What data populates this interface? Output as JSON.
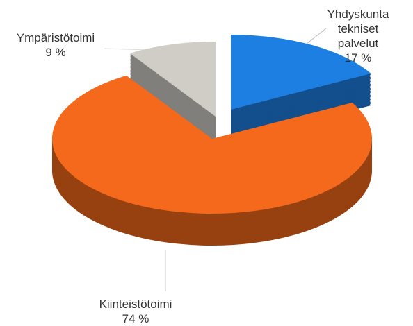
{
  "chart_data": {
    "type": "pie",
    "categories": [
      "Yhdyskunta tekniset palvelut",
      "Kiinteistötoimi",
      "Ympäristötoimi"
    ],
    "values": [
      17,
      74,
      9
    ],
    "value_labels": [
      "17 %",
      "74 %",
      "9 %"
    ],
    "colors": [
      "#1e7fe3",
      "#f4691c",
      "#cfcdc6"
    ]
  }
}
